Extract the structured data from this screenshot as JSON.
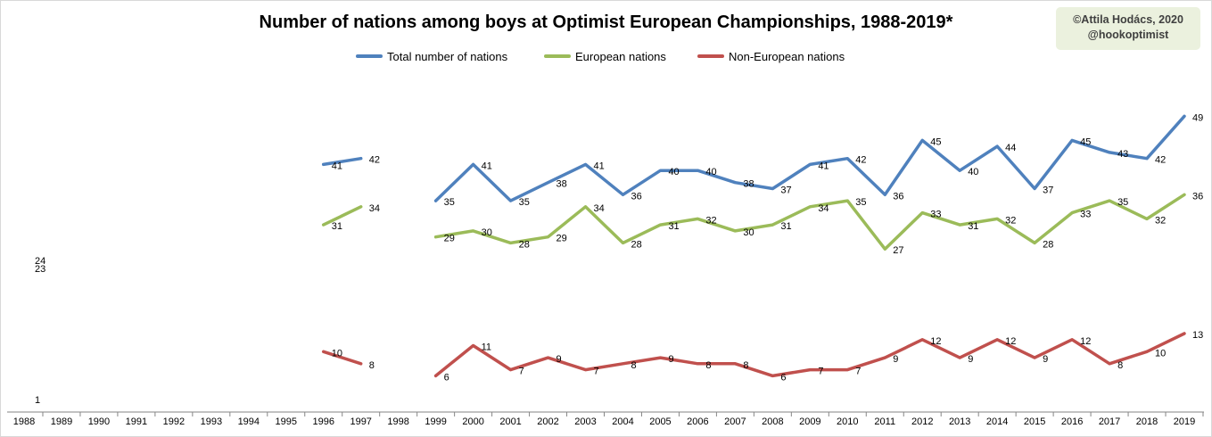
{
  "credit": {
    "line1": "©Attila Hodács, 2020",
    "line2": "@hookoptimist"
  },
  "chart_data": {
    "type": "line",
    "title": "Number of nations among boys at Optimist European Championships, 1988-2019*",
    "x": [
      "1988",
      "1989",
      "1990",
      "1991",
      "1992",
      "1993",
      "1994",
      "1995",
      "1996",
      "1997",
      "1998",
      "1999",
      "2000",
      "2001",
      "2002",
      "2003",
      "2004",
      "2005",
      "2006",
      "2007",
      "2008",
      "2009",
      "2010",
      "2011",
      "2012",
      "2013",
      "2014",
      "2015",
      "2016",
      "2017",
      "2018",
      "2019"
    ],
    "ylim": [
      0,
      52
    ],
    "grid": false,
    "legend": "top",
    "series": [
      {
        "name": "Total number of nations",
        "color": "#4f81bd",
        "values": [
          null,
          null,
          null,
          null,
          null,
          null,
          null,
          null,
          41,
          42,
          null,
          35,
          41,
          35,
          38,
          41,
          36,
          40,
          40,
          38,
          37,
          41,
          42,
          36,
          45,
          40,
          44,
          37,
          45,
          43,
          42,
          49
        ]
      },
      {
        "name": "European nations",
        "color": "#9bbb59",
        "values": [
          null,
          null,
          null,
          null,
          null,
          null,
          null,
          null,
          31,
          34,
          null,
          29,
          30,
          28,
          29,
          34,
          28,
          31,
          32,
          30,
          31,
          34,
          35,
          27,
          33,
          31,
          32,
          28,
          33,
          35,
          32,
          36
        ]
      },
      {
        "name": "Non-European nations",
        "color": "#c0504d",
        "values": [
          null,
          null,
          null,
          null,
          null,
          null,
          null,
          null,
          10,
          8,
          null,
          6,
          11,
          7,
          9,
          7,
          8,
          9,
          8,
          8,
          6,
          7,
          7,
          9,
          12,
          9,
          12,
          9,
          12,
          8,
          10,
          13
        ]
      }
    ],
    "isolated_labels": [
      {
        "x": "1988",
        "value": 24
      },
      {
        "x": "1988",
        "value": 23
      },
      {
        "x": "1988",
        "value": 1
      }
    ]
  }
}
